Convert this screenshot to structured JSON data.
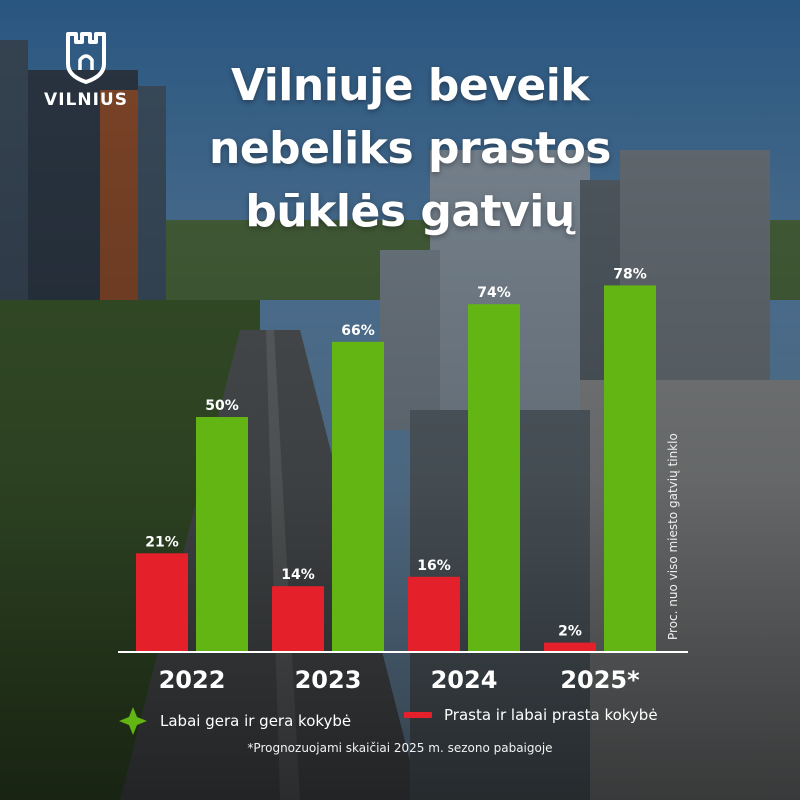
{
  "header": {
    "title_lines": [
      "Vilniuje beveik",
      "nebeliks prastos",
      "būklės gatvių"
    ],
    "logo_text": "VILNIUS"
  },
  "colors": {
    "good": "#62b513",
    "bad": "#e4212b"
  },
  "chart_data": {
    "type": "bar",
    "categories": [
      "2022",
      "2023",
      "2024",
      "2025*"
    ],
    "series": [
      {
        "name": "Prasta ir labai prasta kokybė",
        "values": [
          21,
          14,
          16,
          2
        ],
        "labels": [
          "21%",
          "14%",
          "16%",
          "2%"
        ]
      },
      {
        "name": "Labai gera ir gera kokybė",
        "values": [
          50,
          66,
          74,
          78
        ],
        "labels": [
          "50%",
          "66%",
          "74%",
          "78%"
        ]
      }
    ],
    "ylabel": "Proc. nuo viso miesto gatvių tinklo",
    "ylim": [
      0,
      100
    ],
    "legend": "bottom",
    "grid": false
  },
  "legend": {
    "good_label": "Labai gera ir gera kokybė",
    "bad_label": "Prasta ir labai prasta kokybė"
  },
  "footnote": "*Prognozuojami skaičiai 2025 m. sezono pabaigoje"
}
